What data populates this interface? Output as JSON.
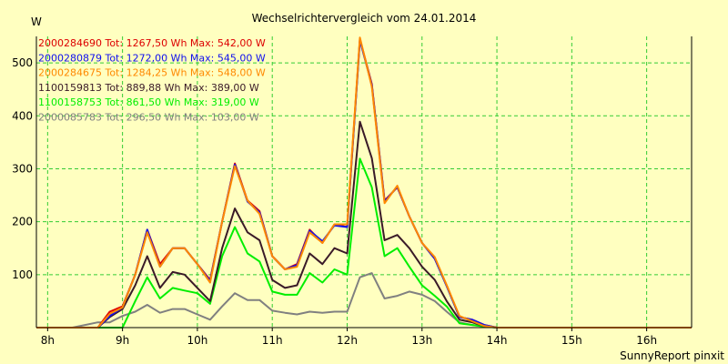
{
  "chart_data": {
    "type": "line",
    "title": "Wechselrichtervergleich vom 24.01.2014",
    "ylabel": "W",
    "xlabel": "",
    "footer": "SunnyReport pinxit",
    "ylim": [
      0,
      550
    ],
    "xlim": [
      7.85,
      16.6
    ],
    "yticks": [
      100,
      200,
      300,
      400,
      500
    ],
    "xticks": [
      {
        "value": 8,
        "label": "8h"
      },
      {
        "value": 9,
        "label": "9h"
      },
      {
        "value": 10,
        "label": "10h"
      },
      {
        "value": 11,
        "label": "11h"
      },
      {
        "value": 12,
        "label": "12h"
      },
      {
        "value": 13,
        "label": "13h"
      },
      {
        "value": 14,
        "label": "14h"
      },
      {
        "value": 15,
        "label": "15h"
      },
      {
        "value": 16,
        "label": "16h"
      }
    ],
    "grid": true,
    "legend_position": "top-left",
    "x": [
      7.85,
      8.0,
      8.17,
      8.33,
      8.5,
      8.67,
      8.83,
      9.0,
      9.17,
      9.33,
      9.5,
      9.67,
      9.83,
      10.0,
      10.17,
      10.33,
      10.5,
      10.67,
      10.83,
      11.0,
      11.17,
      11.33,
      11.5,
      11.67,
      11.83,
      12.0,
      12.17,
      12.33,
      12.5,
      12.67,
      12.83,
      13.0,
      13.17,
      13.33,
      13.5,
      13.67,
      13.83,
      14.0,
      14.17,
      14.33,
      14.5,
      14.67,
      14.83,
      15.0,
      15.17,
      15.33,
      15.5,
      15.67,
      15.83,
      16.0,
      16.17,
      16.33,
      16.5,
      16.6
    ],
    "series": [
      {
        "name": "2000284690 Tot: 1267,50 Wh Max: 542,00 W",
        "color": "#dd0000",
        "values": [
          0,
          0,
          0,
          0,
          0,
          0,
          30,
          40,
          100,
          185,
          120,
          150,
          150,
          120,
          90,
          200,
          310,
          240,
          220,
          135,
          110,
          120,
          185,
          160,
          195,
          190,
          545,
          460,
          240,
          265,
          210,
          160,
          130,
          80,
          20,
          15,
          5,
          0,
          0,
          0,
          0,
          0,
          0,
          0,
          0,
          0,
          0,
          0,
          0,
          0,
          0,
          0,
          0,
          0
        ]
      },
      {
        "name": "2000280879 Tot: 1272,00 Wh Max: 545,00 W",
        "color": "#1010ee",
        "values": [
          0,
          0,
          0,
          0,
          0,
          0,
          22,
          38,
          100,
          185,
          115,
          150,
          150,
          120,
          88,
          200,
          308,
          238,
          218,
          135,
          110,
          118,
          183,
          163,
          193,
          190,
          543,
          458,
          238,
          266,
          210,
          160,
          130,
          78,
          20,
          15,
          5,
          0,
          0,
          0,
          0,
          0,
          0,
          0,
          0,
          0,
          0,
          0,
          0,
          0,
          0,
          0,
          0,
          0
        ]
      },
      {
        "name": "2000284675 Tot: 1284,25 Wh Max: 548,00 W",
        "color": "#ff8800",
        "values": [
          0,
          0,
          0,
          0,
          0,
          0,
          26,
          38,
          100,
          180,
          115,
          150,
          150,
          120,
          85,
          200,
          305,
          240,
          215,
          135,
          110,
          115,
          180,
          160,
          195,
          195,
          548,
          455,
          235,
          268,
          210,
          160,
          133,
          80,
          22,
          12,
          3,
          0,
          0,
          0,
          0,
          0,
          0,
          0,
          0,
          0,
          0,
          0,
          0,
          0,
          0,
          0,
          0,
          0
        ]
      },
      {
        "name": "1100159813 Tot: 889,88 Wh Max: 389,00 W",
        "color": "#3a1a28",
        "values": [
          0,
          0,
          0,
          0,
          0,
          0,
          20,
          35,
          80,
          135,
          75,
          105,
          100,
          75,
          50,
          150,
          225,
          180,
          165,
          90,
          75,
          80,
          140,
          120,
          150,
          140,
          389,
          320,
          165,
          175,
          150,
          115,
          90,
          50,
          15,
          10,
          3,
          0,
          0,
          0,
          0,
          0,
          0,
          0,
          0,
          0,
          0,
          0,
          0,
          0,
          0,
          0,
          0,
          0
        ]
      },
      {
        "name": "1100158753 Tot: 861,50 Wh Max: 319,00 W",
        "color": "#00ee00",
        "values": [
          0,
          0,
          0,
          0,
          0,
          0,
          0,
          0,
          50,
          95,
          55,
          75,
          70,
          65,
          45,
          135,
          190,
          140,
          125,
          68,
          62,
          62,
          103,
          85,
          110,
          100,
          319,
          265,
          135,
          150,
          115,
          80,
          60,
          40,
          8,
          5,
          2,
          0,
          0,
          0,
          0,
          0,
          0,
          0,
          0,
          0,
          0,
          0,
          0,
          0,
          0,
          0,
          0,
          0
        ]
      },
      {
        "name": "2000085783 Tot: 296,50 Wh Max: 103,00 W",
        "color": "#808080",
        "values": [
          0,
          0,
          0,
          0,
          5,
          10,
          10,
          22,
          30,
          43,
          28,
          35,
          35,
          25,
          15,
          40,
          65,
          52,
          52,
          32,
          28,
          25,
          30,
          28,
          30,
          30,
          95,
          103,
          55,
          60,
          68,
          62,
          50,
          30,
          10,
          5,
          2,
          0,
          0,
          0,
          0,
          0,
          0,
          0,
          0,
          0,
          0,
          0,
          0,
          0,
          0,
          0,
          0,
          0
        ]
      }
    ]
  }
}
